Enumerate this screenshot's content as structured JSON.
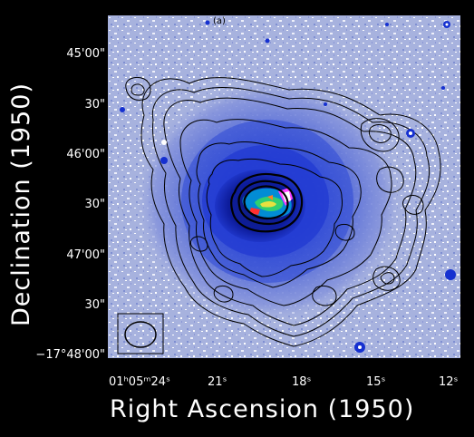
{
  "figure": {
    "axis_x_label": "Right Ascension (1950)",
    "axis_y_label": "Declination (1950)",
    "y_ticks": [
      "45'00\"",
      "30\"",
      "46'00\"",
      "30\"",
      "47'00\"",
      "30\"",
      "−17°48'00\""
    ],
    "x_ticks": [
      "01ʰ05ᵐ24ˢ",
      "21ˢ",
      "18ˢ",
      "15ˢ",
      "12ˢ"
    ],
    "panel_label": "(a)"
  }
}
